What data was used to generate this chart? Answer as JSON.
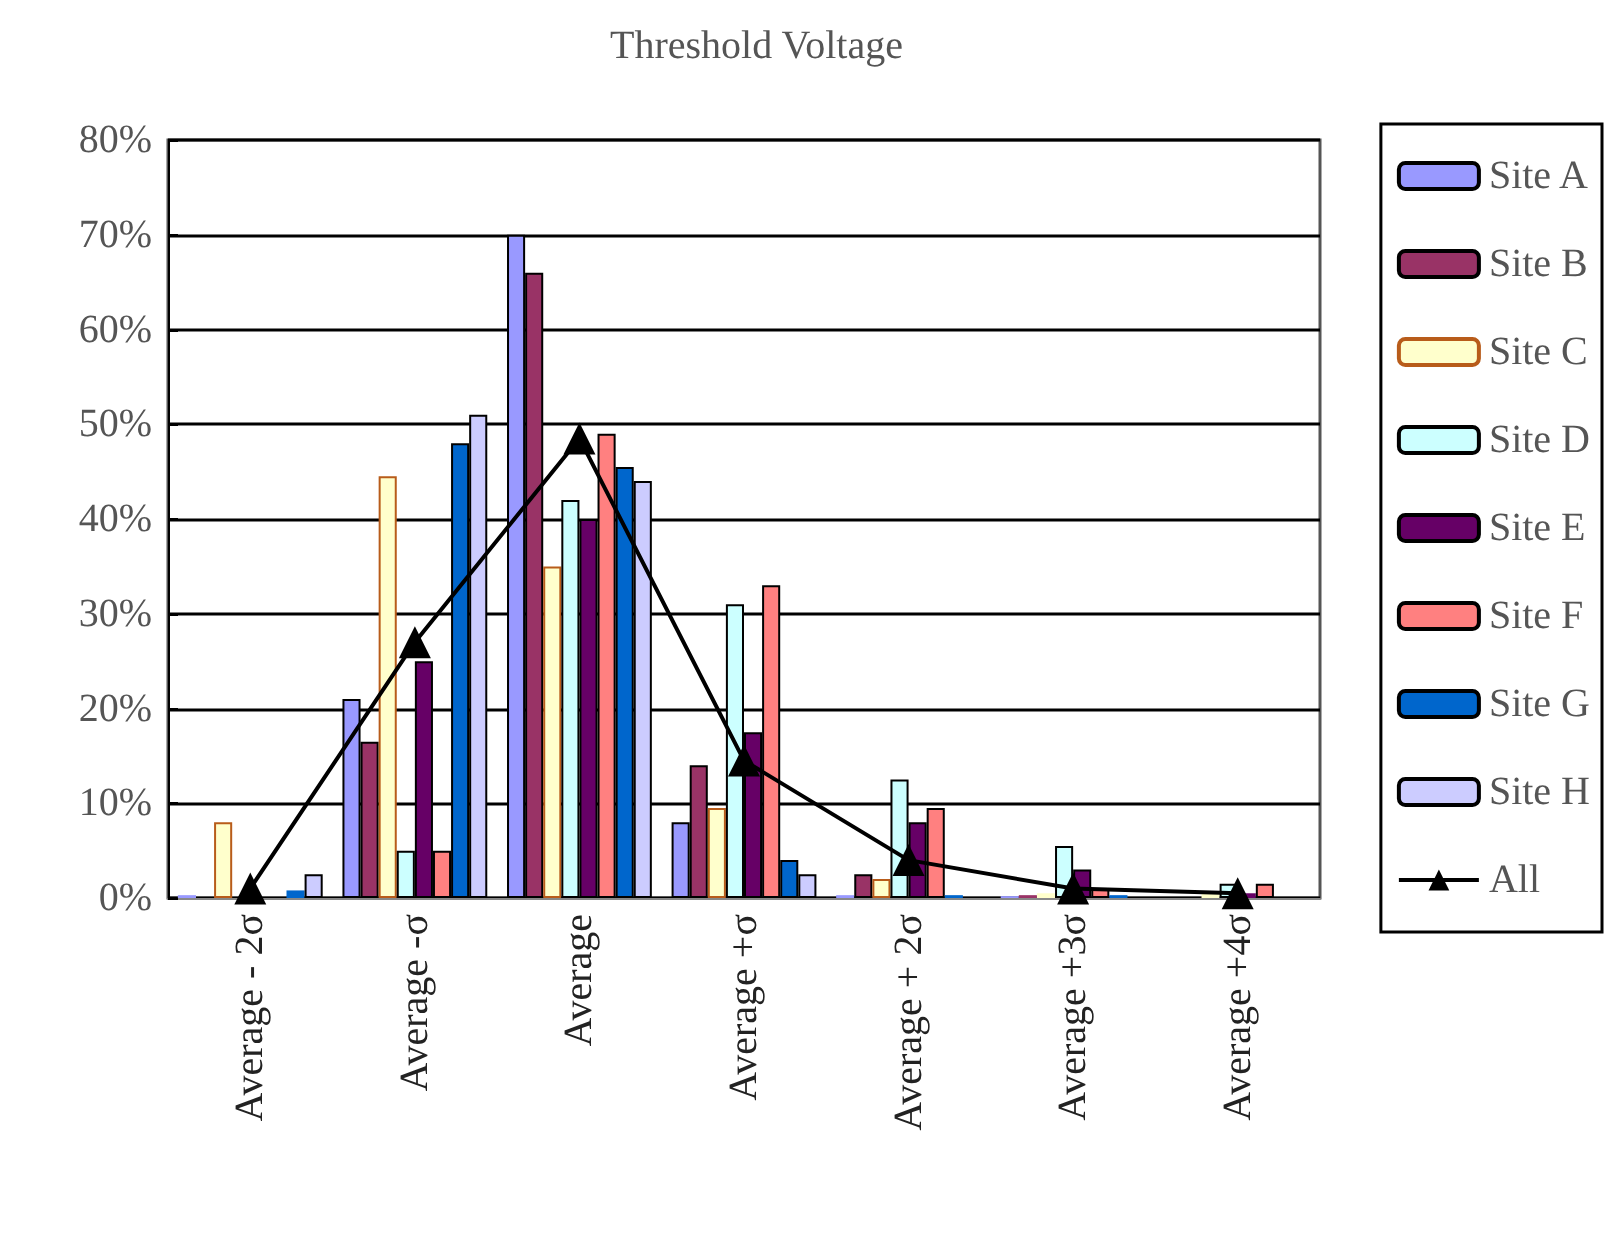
{
  "chart_data": {
    "type": "bar",
    "title": "Threshold Voltage",
    "categories": [
      "Average - 2σ",
      "Average -σ",
      "Average",
      "Average +σ",
      "Average + 2σ",
      "Average +3σ",
      "Average +4σ"
    ],
    "series": [
      {
        "name": "Site A",
        "color": "#9999ff",
        "values": [
          0.3,
          21,
          70,
          8,
          0.3,
          0.2,
          0
        ]
      },
      {
        "name": "Site B",
        "color": "#993366",
        "values": [
          0,
          16.5,
          66,
          14,
          2.5,
          0.3,
          0
        ]
      },
      {
        "name": "Site C",
        "color": "#ffffcc",
        "values": [
          8,
          44.5,
          35,
          9.5,
          2,
          0.5,
          0.5
        ]
      },
      {
        "name": "Site D",
        "color": "#ccffff",
        "values": [
          0,
          5,
          42,
          31,
          12.5,
          5.5,
          1.5
        ]
      },
      {
        "name": "Site E",
        "color": "#660066",
        "values": [
          0,
          25,
          40,
          17.5,
          8,
          3,
          0.5
        ]
      },
      {
        "name": "Site F",
        "color": "#ff8080",
        "values": [
          0,
          5,
          49,
          33,
          9.5,
          1,
          1.5
        ]
      },
      {
        "name": "Site G",
        "color": "#0066cc",
        "values": [
          0.8,
          48,
          45.5,
          4,
          0.3,
          0.3,
          0
        ]
      },
      {
        "name": "Site H",
        "color": "#ccccff",
        "values": [
          2.5,
          51,
          44,
          2.5,
          null,
          0,
          0
        ]
      },
      {
        "name": "All",
        "type": "line",
        "color": "#000000",
        "marker": "triangle",
        "values": [
          1,
          27,
          48.5,
          14.5,
          4,
          1,
          0.5
        ]
      }
    ],
    "ylim": [
      0,
      80
    ],
    "yticks": [
      {
        "value": 0,
        "label": "0%"
      },
      {
        "value": 10,
        "label": "10%"
      },
      {
        "value": 20,
        "label": "20%"
      },
      {
        "value": 30,
        "label": "30%"
      },
      {
        "value": 40,
        "label": "40%"
      },
      {
        "value": 50,
        "label": "50%"
      },
      {
        "value": 60,
        "label": "60%"
      },
      {
        "value": 70,
        "label": "70%"
      },
      {
        "value": 80,
        "label": "80%"
      }
    ],
    "grid": "y",
    "legend": "right"
  }
}
